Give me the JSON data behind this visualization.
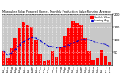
{
  "title": "Milwaukee Solar Powered Home - Monthly Production Value Running Average",
  "bar_values": [
    55,
    25,
    65,
    105,
    145,
    170,
    155,
    150,
    100,
    45,
    15,
    20,
    55,
    30,
    70,
    115,
    145,
    175,
    165,
    155,
    105,
    55,
    20,
    25,
    60,
    35,
    8
  ],
  "avg_values": [
    55,
    40,
    48,
    63,
    79,
    93,
    102,
    108,
    106,
    96,
    84,
    74,
    72,
    69,
    69,
    73,
    79,
    86,
    93,
    100,
    101,
    99,
    93,
    87,
    84,
    80,
    72
  ],
  "bar_color": "#ff0000",
  "avg_color": "#0000cc",
  "bg_color": "#c8c8c8",
  "plot_bg": "#c8c8c8",
  "face_color": "#ffffff",
  "grid_color": "#ffffff",
  "ylim": [
    0,
    200
  ],
  "ytick_vals": [
    50,
    100,
    150,
    200
  ],
  "ytick_labels": [
    "50",
    "100",
    "150",
    "200"
  ],
  "legend_bar": "Monthly Value",
  "legend_avg": "Running Avg"
}
